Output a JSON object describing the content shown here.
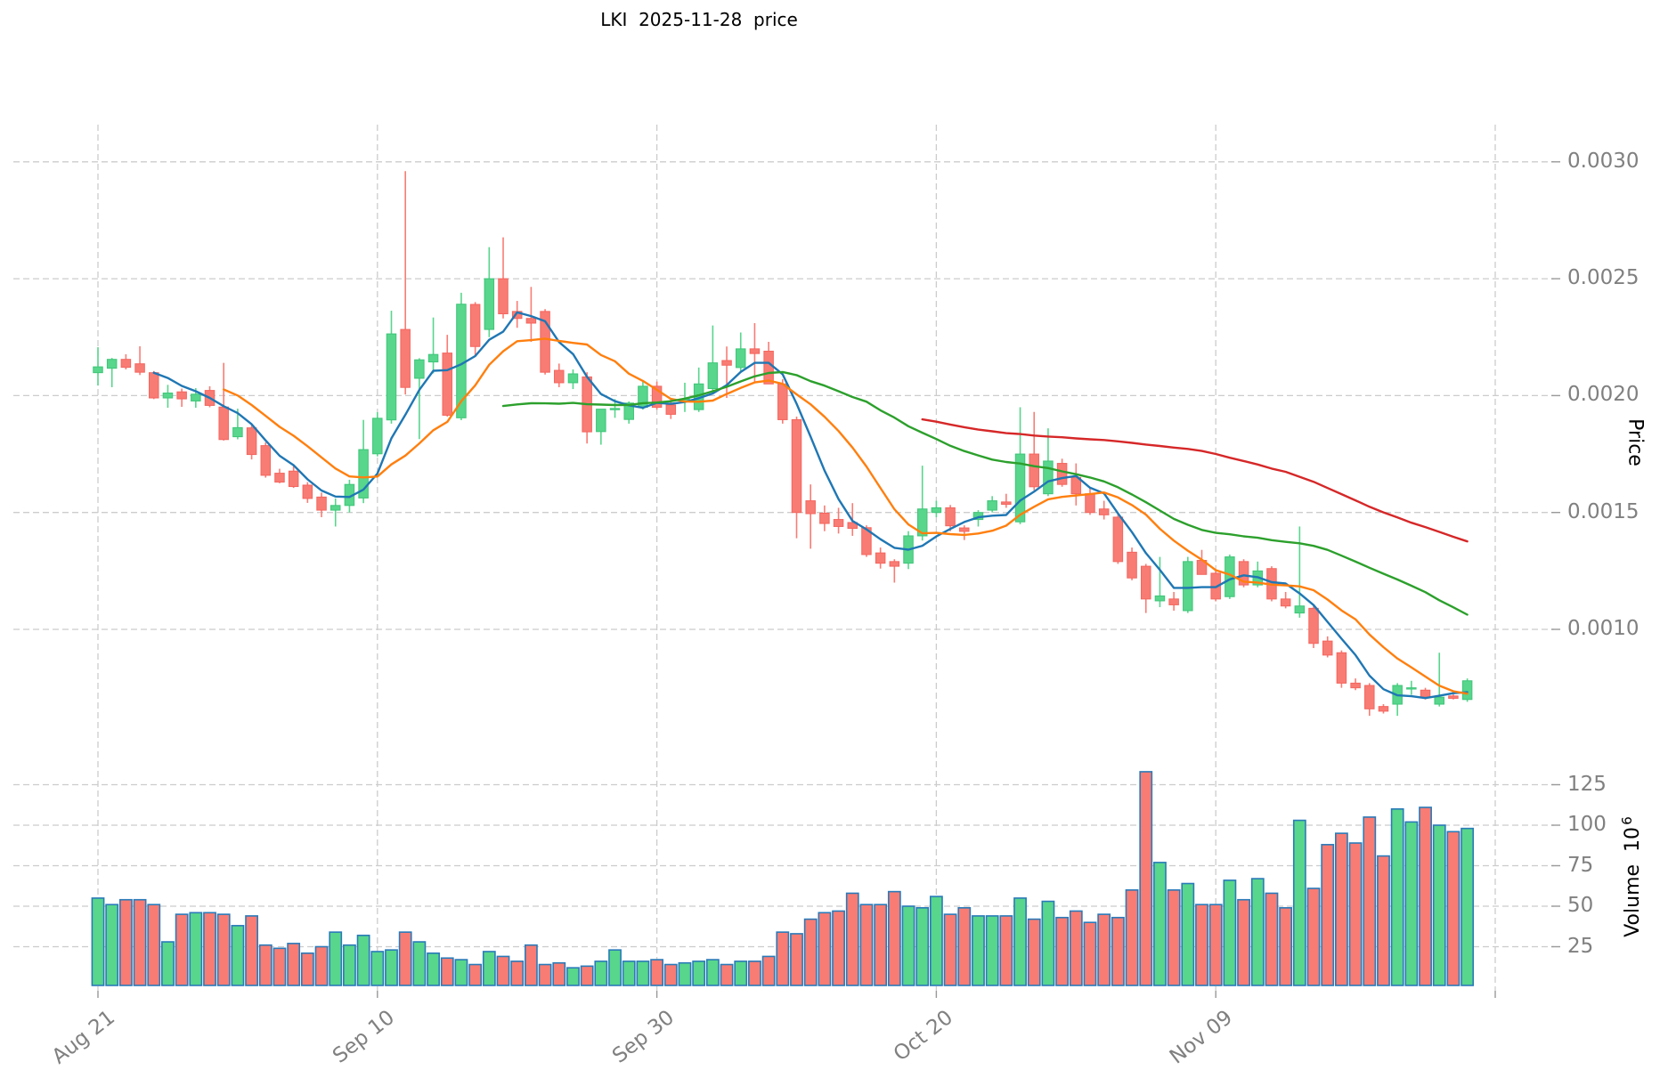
{
  "title": "LKI  2025-11-28  price",
  "price_axis": {
    "label": "Price",
    "ticks": [
      0.003,
      0.0025,
      0.002,
      0.0015,
      0.001
    ]
  },
  "volume_axis": {
    "label": "Volume",
    "unit_base": "10",
    "unit_exponent": "6",
    "ticks": [
      125,
      100,
      75,
      50,
      25
    ]
  },
  "x_axis": {
    "tick_labels": [
      "Aug 21",
      "Sep 10",
      "Sep 30",
      "Oct 20",
      "Nov 09"
    ],
    "tick_indices": [
      0,
      20,
      40,
      60,
      80
    ],
    "gridline_indices": [
      0,
      20,
      40,
      60,
      80,
      100
    ]
  },
  "moving_averages": {
    "windows": [
      5,
      10,
      30,
      60
    ],
    "colors": [
      "#1f77b4",
      "#ff7f0e",
      "#2ca02c",
      "#d62728"
    ]
  },
  "colors": {
    "up": "#57d68c",
    "up_edge": "#3ec578",
    "down": "#f87c74",
    "down_edge": "#f4655e",
    "volume_edge": "#2a7ab9",
    "grid": "#cccccc",
    "tick_text": "#808080",
    "tick_mark": "#999999",
    "background": "#ffffff"
  },
  "chart_data": {
    "type": "candlestick",
    "subplots": [
      "price",
      "volume"
    ],
    "volume_unit_multiplier": "10^6",
    "price_range_shown": [
      0.001,
      0.003
    ],
    "volume_range_shown": [
      25,
      125
    ],
    "ohlcv_note": "each row = [open, high, low, close, volume_millions]",
    "candles": [
      [
        0.002098,
        0.002207,
        0.002043,
        0.002123,
        55
      ],
      [
        0.002117,
        0.002161,
        0.002036,
        0.002155,
        51
      ],
      [
        0.002155,
        0.002177,
        0.002112,
        0.002121,
        54
      ],
      [
        0.002136,
        0.002211,
        0.002088,
        0.0021,
        54
      ],
      [
        0.002098,
        0.002105,
        0.001985,
        0.00199,
        51
      ],
      [
        0.00199,
        0.002046,
        0.001948,
        0.002011,
        28
      ],
      [
        0.002016,
        0.00203,
        0.001952,
        0.001986,
        45
      ],
      [
        0.001977,
        0.002032,
        0.001948,
        0.002006,
        46
      ],
      [
        0.002022,
        0.00204,
        0.00195,
        0.001958,
        46
      ],
      [
        0.001951,
        0.00214,
        0.001808,
        0.001812,
        45
      ],
      [
        0.001824,
        0.001944,
        0.001813,
        0.001863,
        38
      ],
      [
        0.001862,
        0.001875,
        0.001727,
        0.001748,
        44
      ],
      [
        0.001786,
        0.0018,
        0.001649,
        0.001659,
        26
      ],
      [
        0.001668,
        0.001687,
        0.001625,
        0.00163,
        24
      ],
      [
        0.001677,
        0.001705,
        0.001605,
        0.001611,
        27
      ],
      [
        0.001617,
        0.00163,
        0.001541,
        0.00156,
        21
      ],
      [
        0.001566,
        0.001585,
        0.00148,
        0.00151,
        25
      ],
      [
        0.00151,
        0.00156,
        0.00144,
        0.00153,
        34
      ],
      [
        0.00153,
        0.00164,
        0.0015,
        0.00162,
        26
      ],
      [
        0.001562,
        0.001896,
        0.00154,
        0.001769,
        32
      ],
      [
        0.001751,
        0.001929,
        0.00174,
        0.001903,
        22
      ],
      [
        0.001896,
        0.002363,
        0.00188,
        0.002264,
        23
      ],
      [
        0.002283,
        0.00296,
        0.002005,
        0.002035,
        34
      ],
      [
        0.002074,
        0.00216,
        0.001814,
        0.002153,
        28
      ],
      [
        0.002144,
        0.002334,
        0.002095,
        0.002176,
        21
      ],
      [
        0.002182,
        0.00226,
        0.00191,
        0.001916,
        18
      ],
      [
        0.001905,
        0.00244,
        0.001895,
        0.002391,
        17
      ],
      [
        0.00239,
        0.0024,
        0.00217,
        0.00221,
        14
      ],
      [
        0.002283,
        0.002635,
        0.00225,
        0.0025,
        22
      ],
      [
        0.0025,
        0.002677,
        0.00233,
        0.00235,
        19
      ],
      [
        0.00236,
        0.002405,
        0.00229,
        0.00233,
        16
      ],
      [
        0.00233,
        0.002465,
        0.00223,
        0.00231,
        26
      ],
      [
        0.00236,
        0.00237,
        0.00209,
        0.0021,
        14
      ],
      [
        0.002108,
        0.002137,
        0.002036,
        0.002055,
        15
      ],
      [
        0.002055,
        0.002112,
        0.002028,
        0.002093,
        12
      ],
      [
        0.00208,
        0.0021,
        0.001795,
        0.001845,
        13
      ],
      [
        0.001846,
        0.00187,
        0.00179,
        0.001942,
        16
      ],
      [
        0.00194,
        0.001985,
        0.001905,
        0.001945,
        23
      ],
      [
        0.001898,
        0.001975,
        0.00188,
        0.001968,
        16
      ],
      [
        0.00195,
        0.00206,
        0.00194,
        0.00204,
        16
      ],
      [
        0.00204,
        0.00206,
        0.00194,
        0.00195,
        17
      ],
      [
        0.00196,
        0.001985,
        0.0019,
        0.00192,
        14
      ],
      [
        0.001975,
        0.002055,
        0.00193,
        0.001985,
        15
      ],
      [
        0.00194,
        0.00212,
        0.00193,
        0.00205,
        16
      ],
      [
        0.00203,
        0.0023,
        0.00201,
        0.00214,
        17
      ],
      [
        0.00215,
        0.00221,
        0.00199,
        0.00213,
        14
      ],
      [
        0.00212,
        0.00227,
        0.0021,
        0.0022,
        16
      ],
      [
        0.0022,
        0.00231,
        0.00206,
        0.00218,
        16
      ],
      [
        0.00219,
        0.00223,
        0.00205,
        0.00205,
        19
      ],
      [
        0.00205,
        0.00207,
        0.00188,
        0.001897,
        34
      ],
      [
        0.001897,
        0.00191,
        0.00139,
        0.0015,
        33
      ],
      [
        0.00155,
        0.00162,
        0.001345,
        0.001495,
        42
      ],
      [
        0.001497,
        0.00153,
        0.00142,
        0.001453,
        46
      ],
      [
        0.00147,
        0.00152,
        0.00141,
        0.00144,
        47
      ],
      [
        0.001457,
        0.00154,
        0.0014,
        0.001432,
        58
      ],
      [
        0.001435,
        0.001445,
        0.00131,
        0.00132,
        51
      ],
      [
        0.001327,
        0.00135,
        0.00126,
        0.001283,
        51
      ],
      [
        0.00129,
        0.0013,
        0.0012,
        0.00127,
        59
      ],
      [
        0.001283,
        0.00142,
        0.001258,
        0.0014,
        50
      ],
      [
        0.0014,
        0.0017,
        0.00138,
        0.001515,
        49
      ],
      [
        0.0015,
        0.00155,
        0.00148,
        0.00152,
        56
      ],
      [
        0.00152,
        0.001532,
        0.00142,
        0.001443,
        45
      ],
      [
        0.001434,
        0.001445,
        0.001382,
        0.001419,
        49
      ],
      [
        0.00147,
        0.00151,
        0.00144,
        0.0015,
        44
      ],
      [
        0.00151,
        0.00157,
        0.0015,
        0.00155,
        44
      ],
      [
        0.001545,
        0.00158,
        0.00152,
        0.001535,
        44
      ],
      [
        0.00146,
        0.00195,
        0.00145,
        0.00175,
        55
      ],
      [
        0.00175,
        0.00193,
        0.001595,
        0.00161,
        42
      ],
      [
        0.00158,
        0.00186,
        0.00157,
        0.00172,
        53
      ],
      [
        0.00171,
        0.00173,
        0.00161,
        0.00162,
        43
      ],
      [
        0.00165,
        0.00171,
        0.00153,
        0.00158,
        47
      ],
      [
        0.00158,
        0.001605,
        0.00149,
        0.0015,
        40
      ],
      [
        0.001515,
        0.00155,
        0.00147,
        0.00149,
        45
      ],
      [
        0.00148,
        0.0015,
        0.00128,
        0.00129,
        43
      ],
      [
        0.00133,
        0.00135,
        0.00121,
        0.00122,
        60
      ],
      [
        0.00127,
        0.00128,
        0.00107,
        0.00113,
        133
      ],
      [
        0.001122,
        0.00131,
        0.001095,
        0.001143,
        77
      ],
      [
        0.00113,
        0.00116,
        0.00108,
        0.001105,
        60
      ],
      [
        0.00108,
        0.00131,
        0.00107,
        0.00129,
        64
      ],
      [
        0.001295,
        0.00134,
        0.00124,
        0.001235,
        51
      ],
      [
        0.00124,
        0.00125,
        0.00112,
        0.00113,
        51
      ],
      [
        0.00114,
        0.00132,
        0.00113,
        0.00131,
        66
      ],
      [
        0.00129,
        0.0013,
        0.00118,
        0.00119,
        54
      ],
      [
        0.00119,
        0.00129,
        0.00118,
        0.00125,
        67
      ],
      [
        0.00126,
        0.00127,
        0.00112,
        0.00113,
        58
      ],
      [
        0.00113,
        0.00116,
        0.00109,
        0.0011,
        49
      ],
      [
        0.00107,
        0.00144,
        0.00105,
        0.0011,
        103
      ],
      [
        0.00109,
        0.0011,
        0.00092,
        0.00094,
        61
      ],
      [
        0.00095,
        0.00097,
        0.00088,
        0.00089,
        88
      ],
      [
        0.0009,
        0.00091,
        0.00075,
        0.00077,
        95
      ],
      [
        0.00077,
        0.00079,
        0.00074,
        0.00075,
        89
      ],
      [
        0.00076,
        0.00077,
        0.00063,
        0.00066,
        105
      ],
      [
        0.00067,
        0.00068,
        0.00064,
        0.00065,
        81
      ],
      [
        0.00068,
        0.00077,
        0.00063,
        0.00076,
        110
      ],
      [
        0.000745,
        0.00078,
        0.00072,
        0.00075,
        102
      ],
      [
        0.00074,
        0.00075,
        0.0007,
        0.00071,
        111
      ],
      [
        0.00068,
        0.0009,
        0.00067,
        0.00071,
        100
      ],
      [
        0.000715,
        0.00073,
        0.0007,
        0.000705,
        96
      ],
      [
        0.0007,
        0.00079,
        0.00069,
        0.00078,
        98
      ]
    ]
  }
}
